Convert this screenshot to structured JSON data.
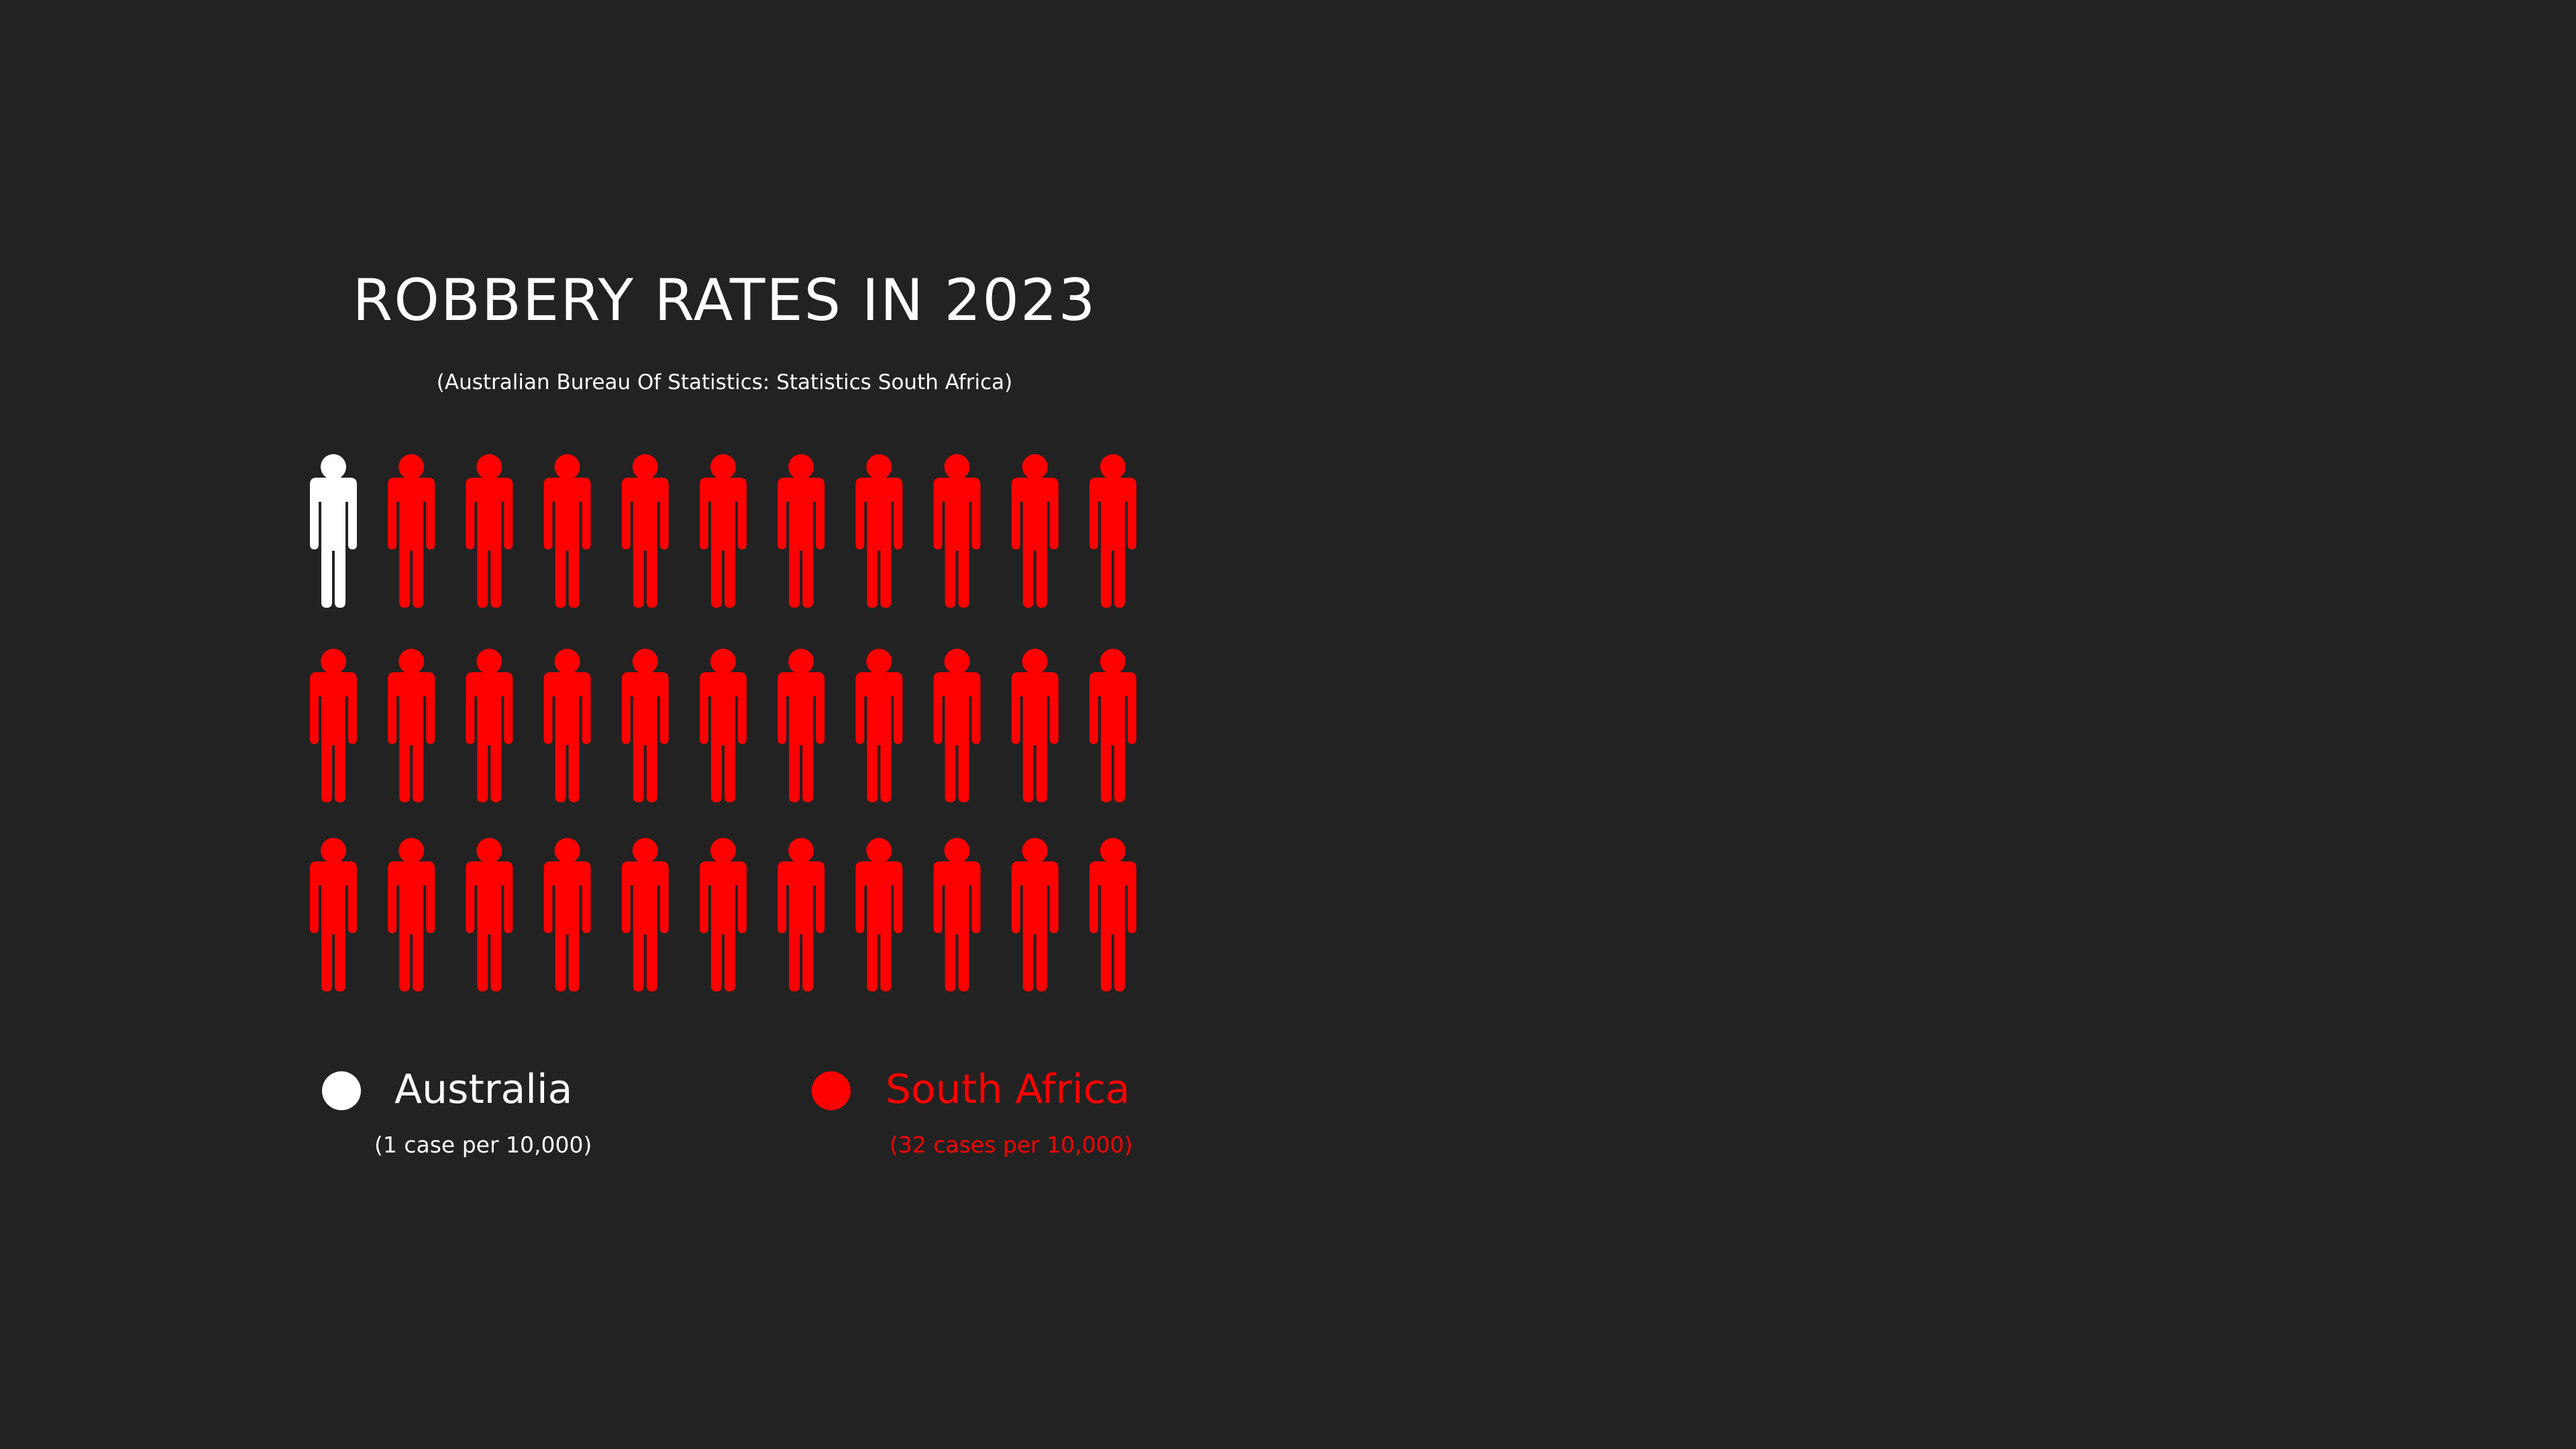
{
  "chart_data": {
    "type": "pictogram",
    "title": "ROBBERY RATES IN 2023",
    "subtitle": "(Australian Bureau Of Statistics: Statistics South Africa)",
    "icon": "person-icon",
    "grid": {
      "rows": 3,
      "columns": 11
    },
    "series": [
      {
        "name": "Australia",
        "value": 1,
        "note": "(1 case per 10,000)",
        "color": "#ffffff"
      },
      {
        "name": "South Africa",
        "value": 32,
        "note": "(32 cases per 10,000)",
        "color": "#ff0000"
      }
    ]
  },
  "colors": {
    "background": "#222222",
    "text": "#ffffff",
    "accent": "#ff0000"
  }
}
